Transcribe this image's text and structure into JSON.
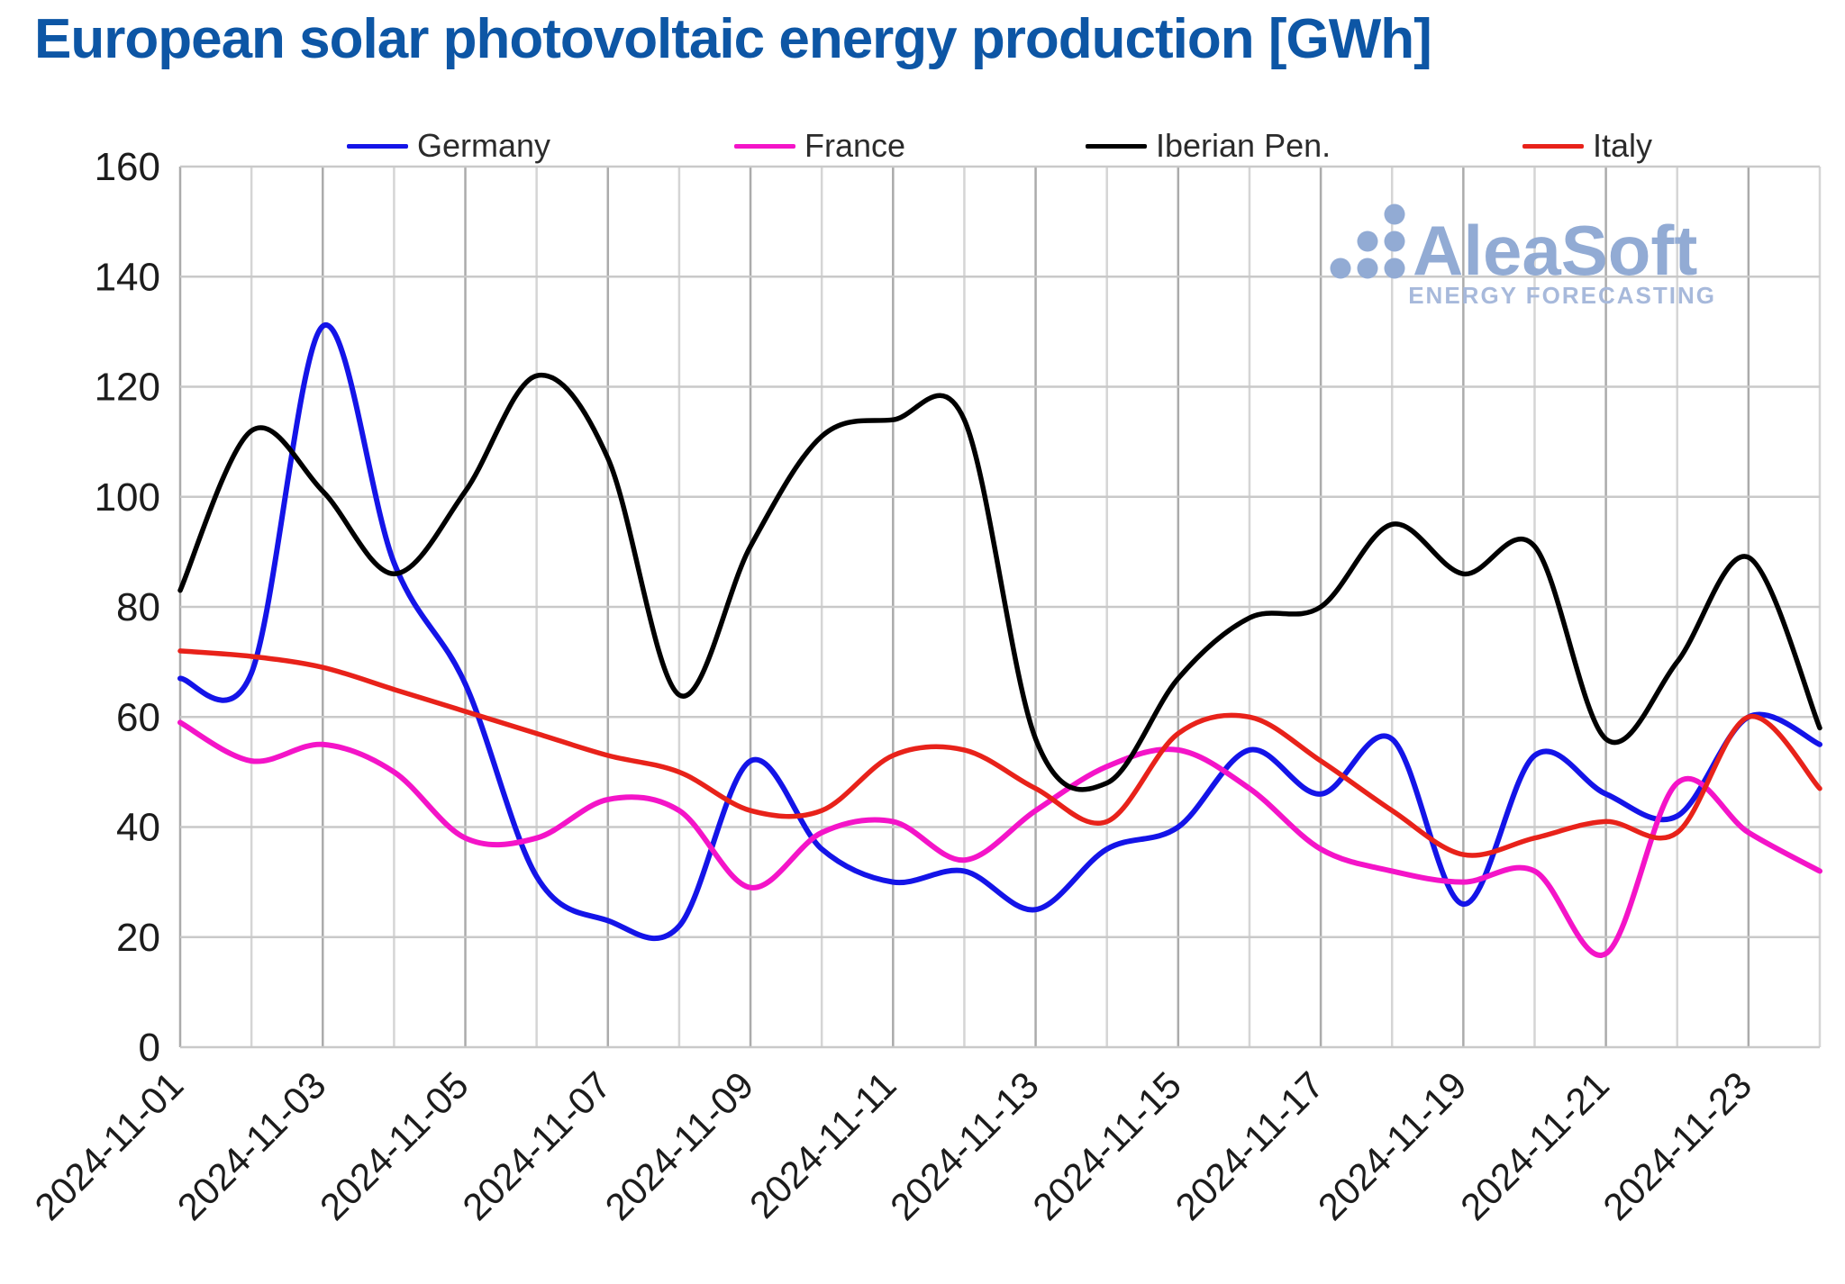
{
  "page": {
    "title": "European solar photovoltaic energy production [GWh]",
    "title_color": "#0d56a5"
  },
  "watermark": {
    "brand": "AleaSoft",
    "tagline": "ENERGY FORECASTING",
    "brand_color": "#92abd4",
    "tagline_color": "#a7b9db"
  },
  "legend": {
    "items": [
      {
        "label": "Germany",
        "color": "#1414e8"
      },
      {
        "label": "France",
        "color": "#f414c8"
      },
      {
        "label": "Iberian Pen.",
        "color": "#000000"
      },
      {
        "label": "Italy",
        "color": "#e8221a"
      }
    ]
  },
  "chart_data": {
    "type": "line",
    "title": "European solar photovoltaic energy production [GWh]",
    "xlabel": "",
    "ylabel": "",
    "ylim": [
      0,
      160
    ],
    "yticks": [
      0,
      20,
      40,
      60,
      80,
      100,
      120,
      140,
      160
    ],
    "grid": true,
    "legend_position": "top",
    "x_tick_every": 2,
    "x": [
      "2024-11-01",
      "2024-11-02",
      "2024-11-03",
      "2024-11-04",
      "2024-11-05",
      "2024-11-06",
      "2024-11-07",
      "2024-11-08",
      "2024-11-09",
      "2024-11-10",
      "2024-11-11",
      "2024-11-12",
      "2024-11-13",
      "2024-11-14",
      "2024-11-15",
      "2024-11-16",
      "2024-11-17",
      "2024-11-18",
      "2024-11-19",
      "2024-11-20",
      "2024-11-21",
      "2024-11-22",
      "2024-11-23",
      "2024-11-24"
    ],
    "series": [
      {
        "name": "Germany",
        "color": "#1414e8",
        "width": 6,
        "values": [
          67,
          68,
          131,
          88,
          66,
          31,
          23,
          22,
          52,
          36,
          30,
          32,
          25,
          36,
          40,
          54,
          46,
          56,
          26,
          53,
          46,
          42,
          60,
          55
        ]
      },
      {
        "name": "France",
        "color": "#f414c8",
        "width": 6,
        "values": [
          59,
          52,
          55,
          50,
          38,
          38,
          45,
          43,
          29,
          39,
          41,
          34,
          43,
          51,
          54,
          47,
          36,
          32,
          30,
          32,
          17,
          48,
          39,
          32
        ]
      },
      {
        "name": "Iberian Pen.",
        "color": "#000000",
        "width": 5.5,
        "values": [
          83,
          112,
          101,
          86,
          101,
          122,
          107,
          64,
          91,
          111,
          114,
          114,
          56,
          48,
          67,
          78,
          80,
          95,
          86,
          91,
          56,
          70,
          89,
          58
        ]
      },
      {
        "name": "Italy",
        "color": "#e8221a",
        "width": 5.5,
        "values": [
          72,
          71,
          69,
          65,
          61,
          57,
          53,
          50,
          43,
          43,
          53,
          54,
          47,
          41,
          57,
          60,
          52,
          43,
          35,
          38,
          41,
          39,
          60,
          47
        ]
      }
    ],
    "style": {
      "grid_major_v": "#ababab",
      "grid_minor_v": "#d5d5d5",
      "grid_h": "#c9c9c9",
      "tick_color": "#1c1c1c"
    }
  },
  "legend_layout": {
    "lefts": [
      385,
      815,
      1205,
      1690
    ]
  }
}
